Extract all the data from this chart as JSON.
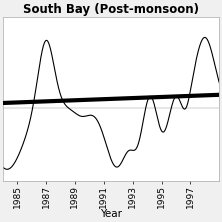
{
  "title": "South Bay (Post-monsoon)",
  "xlabel": "Year",
  "ylabel": "",
  "xticks": [
    1985,
    1987,
    1989,
    1991,
    1993,
    1995,
    1997
  ],
  "xlim": [
    1984.0,
    1999.0
  ],
  "ylim": [
    -1.6,
    2.0
  ],
  "background_color": "#f0f0f0",
  "plot_bg_color": "#ffffff",
  "title_fontsize": 8.5,
  "tick_fontsize": 6.5,
  "trend_color": "#000000",
  "line_color": "#000000",
  "trend_slope": 0.012,
  "trend_intercept": -23.7,
  "figsize": [
    2.22,
    2.22
  ],
  "dpi": 100
}
